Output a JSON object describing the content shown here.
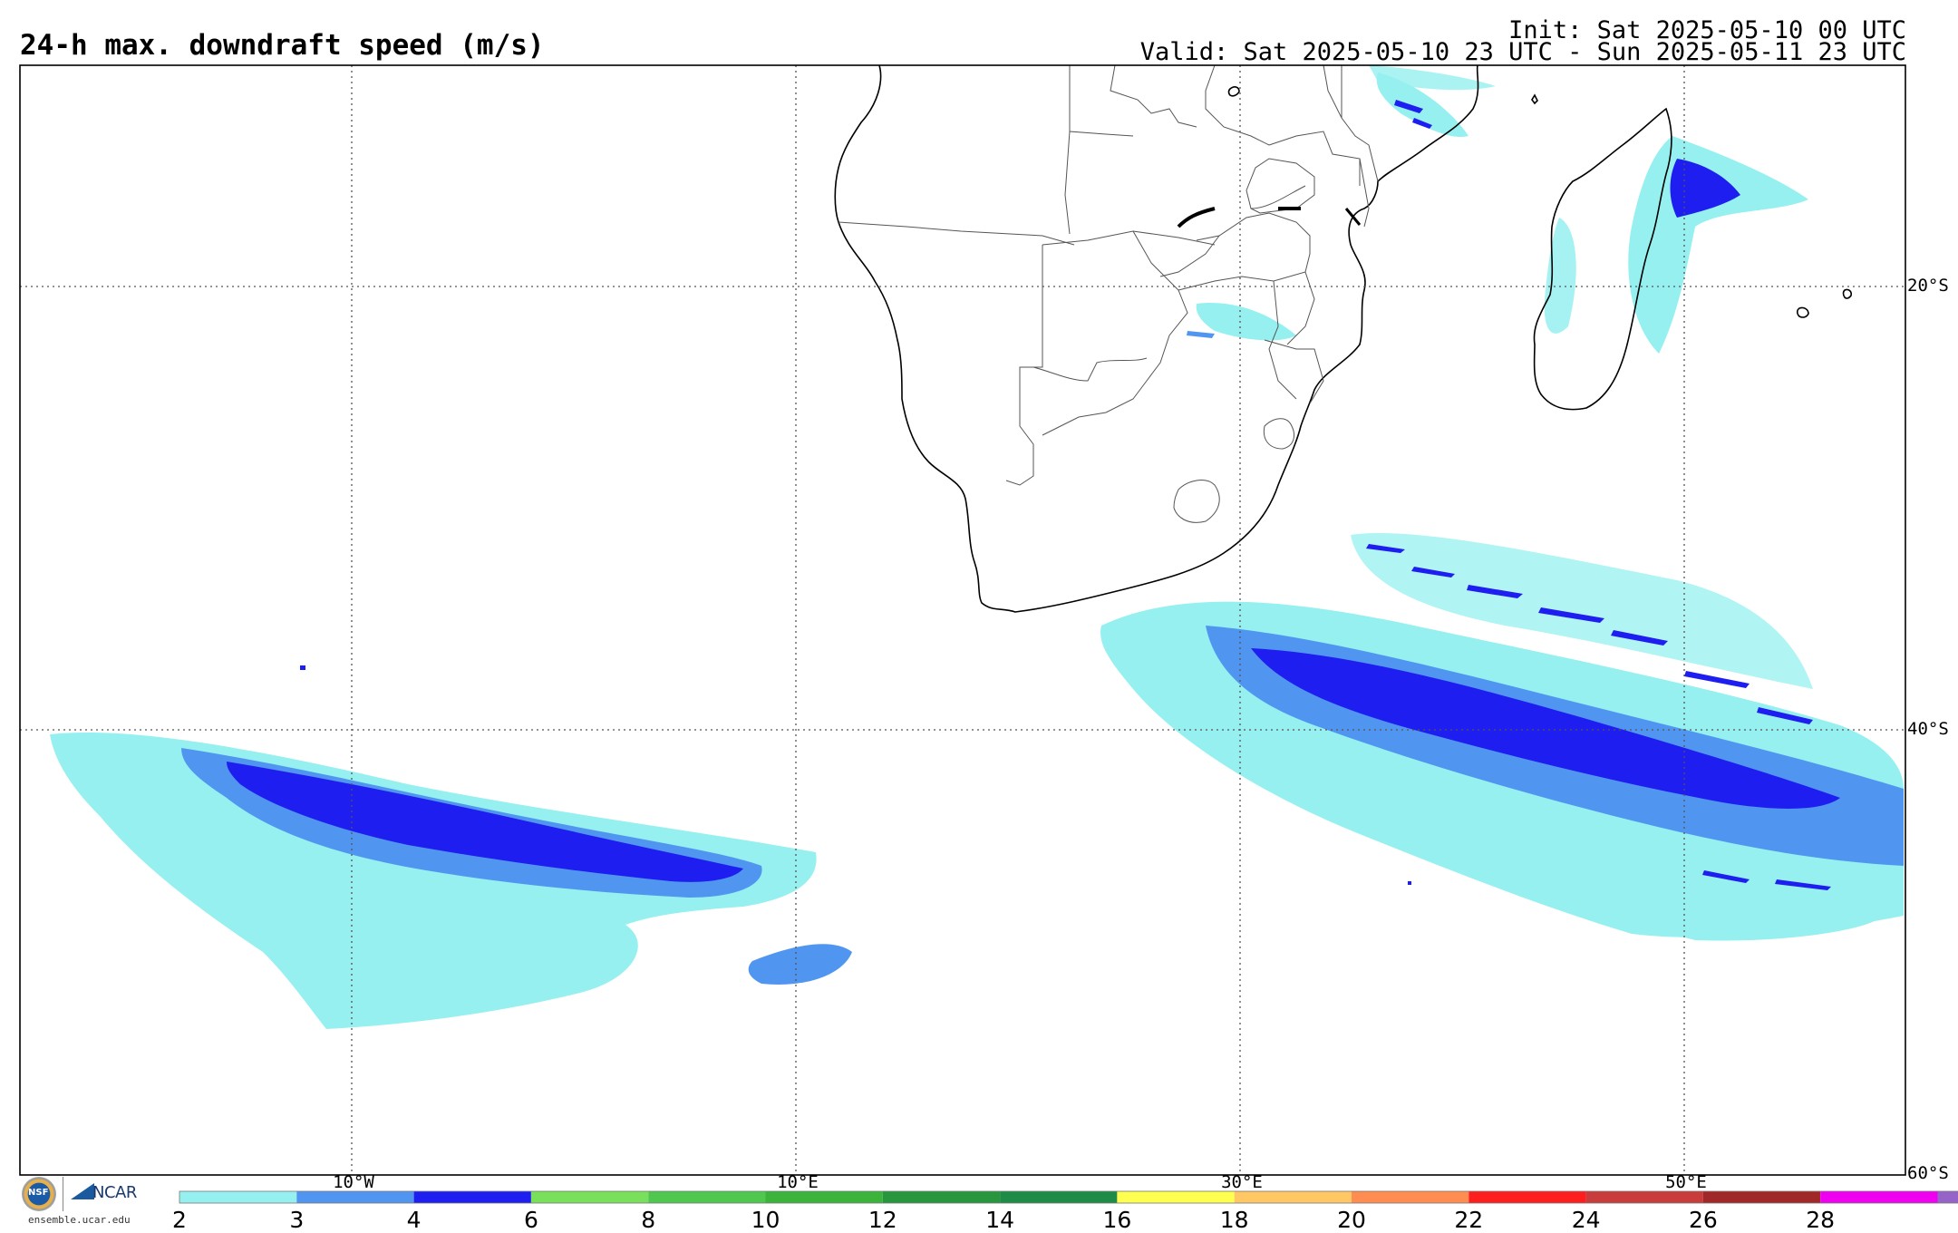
{
  "header": {
    "title": "24-h max. downdraft speed (m/s)",
    "init": "Init: Sat 2025-05-10 00 UTC",
    "valid": "Valid: Sat 2025-05-10 23 UTC - Sun 2025-05-11 23 UTC"
  },
  "map": {
    "projection": "cylindrical",
    "lon_range": [
      -25,
      60
    ],
    "lat_range": [
      -60,
      -10
    ],
    "lat_labels": [
      "20°S",
      "40°S",
      "60°S"
    ],
    "lon_labels": [
      "10°W",
      "10°E",
      "30°E",
      "50°E"
    ],
    "grid": true
  },
  "colorbar": {
    "ticks": [
      "2",
      "3",
      "4",
      "6",
      "8",
      "10",
      "12",
      "14",
      "16",
      "18",
      "20",
      "22",
      "24",
      "26",
      "28"
    ],
    "colors": [
      "#96f0f0",
      "#5096f0",
      "#1e1ef0",
      "#78e05a",
      "#50c850",
      "#3cb43c",
      "#28963c",
      "#1e8c46",
      "#ffff50",
      "#ffc864",
      "#ff8c50",
      "#ff1e1e",
      "#c83c3c",
      "#a02828",
      "#f000f0",
      "#9664c8"
    ]
  },
  "logos": {
    "nsf": "NSF",
    "ncar": "NCAR",
    "url": "ensemble.ucar.edu"
  }
}
